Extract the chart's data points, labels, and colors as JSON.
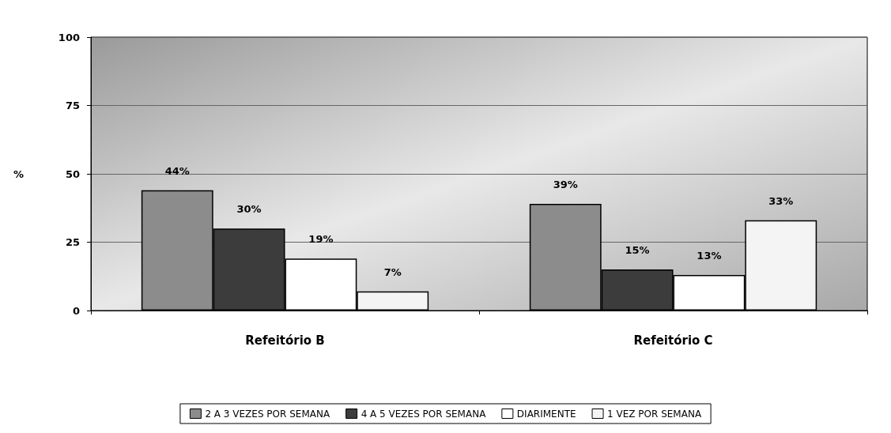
{
  "chart_data": {
    "type": "bar",
    "ylabel": "%",
    "categories": [
      "Refeitório B",
      "Refeitório C"
    ],
    "series": [
      {
        "name": "2 A 3 VEZES POR SEMANA",
        "color": "#8c8c8c",
        "values": [
          44,
          39
        ],
        "value_labels": [
          "44%",
          "39%"
        ]
      },
      {
        "name": "4 A 5 VEZES POR SEMANA",
        "color": "#3c3c3c",
        "values": [
          30,
          15
        ],
        "value_labels": [
          "30%",
          "15%"
        ]
      },
      {
        "name": "DIARIMENTE",
        "color": "#ffffff",
        "values": [
          19,
          13
        ],
        "value_labels": [
          "19%",
          "13%"
        ]
      },
      {
        "name": "1 VEZ POR SEMANA",
        "color": "#f4f4f4",
        "values": [
          7,
          33
        ],
        "value_labels": [
          "7%",
          "33%"
        ]
      }
    ],
    "ylim": [
      0,
      100
    ],
    "yticks": [
      0,
      25,
      50,
      75,
      100
    ],
    "grid": "y",
    "legend": "bottom"
  }
}
